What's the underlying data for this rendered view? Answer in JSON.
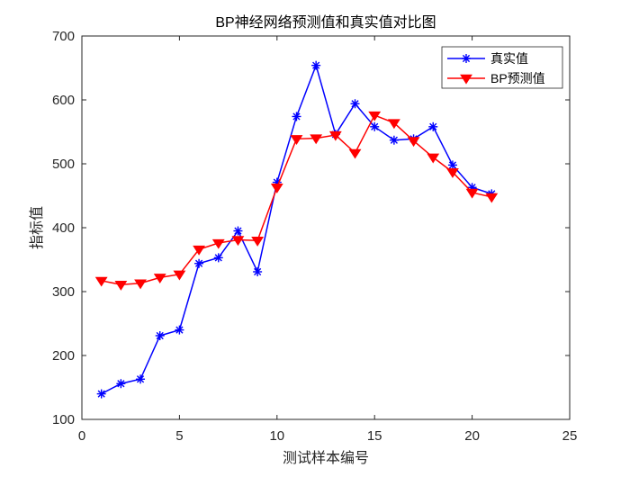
{
  "chart_data": {
    "type": "line",
    "title": "BP神经网络预测值和真实值对比图",
    "xlabel": "测试样本编号",
    "ylabel": "指标值",
    "xlim": [
      0,
      25
    ],
    "ylim": [
      100,
      700
    ],
    "xticks": [
      0,
      5,
      10,
      15,
      20,
      25
    ],
    "yticks": [
      100,
      200,
      300,
      400,
      500,
      600,
      700
    ],
    "xtick_labels": [
      "0",
      "5",
      "10",
      "15",
      "20",
      "25"
    ],
    "ytick_labels": [
      "100",
      "200",
      "300",
      "400",
      "500",
      "600",
      "700"
    ],
    "grid": false,
    "legend_position": "top-right",
    "x": [
      1,
      2,
      3,
      4,
      5,
      6,
      7,
      8,
      9,
      10,
      11,
      12,
      13,
      14,
      15,
      16,
      17,
      18,
      19,
      20,
      21
    ],
    "series": [
      {
        "name": "真实值",
        "color": "#0000ff",
        "marker": "asterisk",
        "values": [
          140,
          156,
          163,
          231,
          240,
          344,
          353,
          395,
          331,
          471,
          574,
          654,
          546,
          594,
          558,
          537,
          539,
          558,
          498,
          463,
          453
        ]
      },
      {
        "name": "BP预测值",
        "color": "#ff0000",
        "marker": "triangle-down",
        "values": [
          317,
          311,
          313,
          322,
          327,
          366,
          376,
          381,
          380,
          463,
          539,
          540,
          545,
          517,
          576,
          564,
          536,
          510,
          487,
          455,
          448
        ]
      }
    ]
  }
}
